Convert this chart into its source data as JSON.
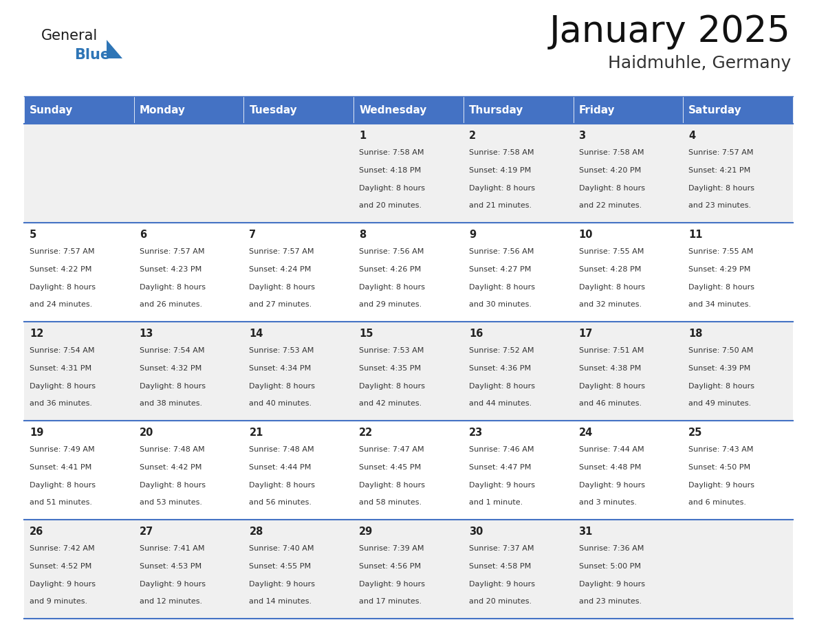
{
  "title": "January 2025",
  "subtitle": "Haidmuhle, Germany",
  "days_of_week": [
    "Sunday",
    "Monday",
    "Tuesday",
    "Wednesday",
    "Thursday",
    "Friday",
    "Saturday"
  ],
  "header_bg": "#4472C4",
  "header_text": "#FFFFFF",
  "row_bg_odd": "#F0F0F0",
  "row_bg_even": "#FFFFFF",
  "cell_border": "#4472C4",
  "title_color": "#111111",
  "subtitle_color": "#333333",
  "day_number_color": "#222222",
  "info_color": "#333333",
  "logo_general_color": "#1a1a1a",
  "logo_blue_color": "#2E75B6",
  "days": [
    {
      "date": 1,
      "col": 3,
      "row": 0,
      "sunrise": "7:58 AM",
      "sunset": "4:18 PM",
      "daylight_h": "8 hours",
      "daylight_m": "and 20 minutes."
    },
    {
      "date": 2,
      "col": 4,
      "row": 0,
      "sunrise": "7:58 AM",
      "sunset": "4:19 PM",
      "daylight_h": "8 hours",
      "daylight_m": "and 21 minutes."
    },
    {
      "date": 3,
      "col": 5,
      "row": 0,
      "sunrise": "7:58 AM",
      "sunset": "4:20 PM",
      "daylight_h": "8 hours",
      "daylight_m": "and 22 minutes."
    },
    {
      "date": 4,
      "col": 6,
      "row": 0,
      "sunrise": "7:57 AM",
      "sunset": "4:21 PM",
      "daylight_h": "8 hours",
      "daylight_m": "and 23 minutes."
    },
    {
      "date": 5,
      "col": 0,
      "row": 1,
      "sunrise": "7:57 AM",
      "sunset": "4:22 PM",
      "daylight_h": "8 hours",
      "daylight_m": "and 24 minutes."
    },
    {
      "date": 6,
      "col": 1,
      "row": 1,
      "sunrise": "7:57 AM",
      "sunset": "4:23 PM",
      "daylight_h": "8 hours",
      "daylight_m": "and 26 minutes."
    },
    {
      "date": 7,
      "col": 2,
      "row": 1,
      "sunrise": "7:57 AM",
      "sunset": "4:24 PM",
      "daylight_h": "8 hours",
      "daylight_m": "and 27 minutes."
    },
    {
      "date": 8,
      "col": 3,
      "row": 1,
      "sunrise": "7:56 AM",
      "sunset": "4:26 PM",
      "daylight_h": "8 hours",
      "daylight_m": "and 29 minutes."
    },
    {
      "date": 9,
      "col": 4,
      "row": 1,
      "sunrise": "7:56 AM",
      "sunset": "4:27 PM",
      "daylight_h": "8 hours",
      "daylight_m": "and 30 minutes."
    },
    {
      "date": 10,
      "col": 5,
      "row": 1,
      "sunrise": "7:55 AM",
      "sunset": "4:28 PM",
      "daylight_h": "8 hours",
      "daylight_m": "and 32 minutes."
    },
    {
      "date": 11,
      "col": 6,
      "row": 1,
      "sunrise": "7:55 AM",
      "sunset": "4:29 PM",
      "daylight_h": "8 hours",
      "daylight_m": "and 34 minutes."
    },
    {
      "date": 12,
      "col": 0,
      "row": 2,
      "sunrise": "7:54 AM",
      "sunset": "4:31 PM",
      "daylight_h": "8 hours",
      "daylight_m": "and 36 minutes."
    },
    {
      "date": 13,
      "col": 1,
      "row": 2,
      "sunrise": "7:54 AM",
      "sunset": "4:32 PM",
      "daylight_h": "8 hours",
      "daylight_m": "and 38 minutes."
    },
    {
      "date": 14,
      "col": 2,
      "row": 2,
      "sunrise": "7:53 AM",
      "sunset": "4:34 PM",
      "daylight_h": "8 hours",
      "daylight_m": "and 40 minutes."
    },
    {
      "date": 15,
      "col": 3,
      "row": 2,
      "sunrise": "7:53 AM",
      "sunset": "4:35 PM",
      "daylight_h": "8 hours",
      "daylight_m": "and 42 minutes."
    },
    {
      "date": 16,
      "col": 4,
      "row": 2,
      "sunrise": "7:52 AM",
      "sunset": "4:36 PM",
      "daylight_h": "8 hours",
      "daylight_m": "and 44 minutes."
    },
    {
      "date": 17,
      "col": 5,
      "row": 2,
      "sunrise": "7:51 AM",
      "sunset": "4:38 PM",
      "daylight_h": "8 hours",
      "daylight_m": "and 46 minutes."
    },
    {
      "date": 18,
      "col": 6,
      "row": 2,
      "sunrise": "7:50 AM",
      "sunset": "4:39 PM",
      "daylight_h": "8 hours",
      "daylight_m": "and 49 minutes."
    },
    {
      "date": 19,
      "col": 0,
      "row": 3,
      "sunrise": "7:49 AM",
      "sunset": "4:41 PM",
      "daylight_h": "8 hours",
      "daylight_m": "and 51 minutes."
    },
    {
      "date": 20,
      "col": 1,
      "row": 3,
      "sunrise": "7:48 AM",
      "sunset": "4:42 PM",
      "daylight_h": "8 hours",
      "daylight_m": "and 53 minutes."
    },
    {
      "date": 21,
      "col": 2,
      "row": 3,
      "sunrise": "7:48 AM",
      "sunset": "4:44 PM",
      "daylight_h": "8 hours",
      "daylight_m": "and 56 minutes."
    },
    {
      "date": 22,
      "col": 3,
      "row": 3,
      "sunrise": "7:47 AM",
      "sunset": "4:45 PM",
      "daylight_h": "8 hours",
      "daylight_m": "and 58 minutes."
    },
    {
      "date": 23,
      "col": 4,
      "row": 3,
      "sunrise": "7:46 AM",
      "sunset": "4:47 PM",
      "daylight_h": "9 hours",
      "daylight_m": "and 1 minute."
    },
    {
      "date": 24,
      "col": 5,
      "row": 3,
      "sunrise": "7:44 AM",
      "sunset": "4:48 PM",
      "daylight_h": "9 hours",
      "daylight_m": "and 3 minutes."
    },
    {
      "date": 25,
      "col": 6,
      "row": 3,
      "sunrise": "7:43 AM",
      "sunset": "4:50 PM",
      "daylight_h": "9 hours",
      "daylight_m": "and 6 minutes."
    },
    {
      "date": 26,
      "col": 0,
      "row": 4,
      "sunrise": "7:42 AM",
      "sunset": "4:52 PM",
      "daylight_h": "9 hours",
      "daylight_m": "and 9 minutes."
    },
    {
      "date": 27,
      "col": 1,
      "row": 4,
      "sunrise": "7:41 AM",
      "sunset": "4:53 PM",
      "daylight_h": "9 hours",
      "daylight_m": "and 12 minutes."
    },
    {
      "date": 28,
      "col": 2,
      "row": 4,
      "sunrise": "7:40 AM",
      "sunset": "4:55 PM",
      "daylight_h": "9 hours",
      "daylight_m": "and 14 minutes."
    },
    {
      "date": 29,
      "col": 3,
      "row": 4,
      "sunrise": "7:39 AM",
      "sunset": "4:56 PM",
      "daylight_h": "9 hours",
      "daylight_m": "and 17 minutes."
    },
    {
      "date": 30,
      "col": 4,
      "row": 4,
      "sunrise": "7:37 AM",
      "sunset": "4:58 PM",
      "daylight_h": "9 hours",
      "daylight_m": "and 20 minutes."
    },
    {
      "date": 31,
      "col": 5,
      "row": 4,
      "sunrise": "7:36 AM",
      "sunset": "5:00 PM",
      "daylight_h": "9 hours",
      "daylight_m": "and 23 minutes."
    }
  ]
}
